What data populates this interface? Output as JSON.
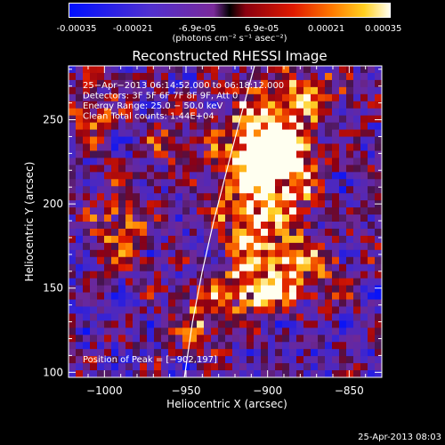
{
  "colorbar": {
    "ticks": [
      "-0.00035",
      "-0.00021",
      "-6.9e-05",
      "6.9e-05",
      "0.00021",
      "0.00035"
    ],
    "unit": "(photons cm⁻² s⁻¹ asec⁻²)"
  },
  "chart_data": {
    "type": "heatmap",
    "title": "Reconstructed RHESSI Image",
    "xlabel": "Heliocentric X (arcsec)",
    "ylabel": "Heliocentric Y (arcsec)",
    "xlim": [
      -1022,
      -830
    ],
    "ylim": [
      97,
      282
    ],
    "xticks": [
      -1000,
      -950,
      -900,
      -850
    ],
    "yticks": [
      100,
      150,
      200,
      250
    ],
    "xtick_labels": [
      "−1000",
      "−950",
      "−900",
      "−850"
    ],
    "ytick_labels": [
      "100",
      "150",
      "200",
      "250"
    ],
    "colorscale_range": [
      -0.00035,
      0.00035
    ],
    "annotations": [
      "25−Apr−2013 06:14:52.000 to 06:18:12.000",
      "Detectors: 3F 5F 6F 7F 8F 9F, Att 0",
      "Energy Range: 25.0 − 50.0 keV",
      "Clean     Total counts: 1.44E+04"
    ],
    "peak_label": "Position of Peak = [−902,197]",
    "peak": [
      -902,
      197
    ],
    "limb": [
      [
        -951,
        97
      ],
      [
        -946,
        130
      ],
      [
        -940,
        160
      ],
      [
        -933,
        190
      ],
      [
        -925,
        220
      ],
      [
        -917,
        250
      ],
      [
        -908,
        282
      ]
    ],
    "hot_regions": [
      {
        "x": -902,
        "y": 215,
        "sx": 18,
        "sy": 38,
        "amp": 1.0
      },
      {
        "x": -897,
        "y": 232,
        "sx": 14,
        "sy": 12,
        "amp": 0.7
      },
      {
        "x": -915,
        "y": 148,
        "sx": 22,
        "sy": 8,
        "amp": 0.55
      },
      {
        "x": -880,
        "y": 160,
        "sx": 20,
        "sy": 10,
        "amp": 0.5
      },
      {
        "x": -940,
        "y": 128,
        "sx": 12,
        "sy": 10,
        "amp": 0.5
      },
      {
        "x": -990,
        "y": 185,
        "sx": 12,
        "sy": 20,
        "amp": 0.45
      },
      {
        "x": -1010,
        "y": 255,
        "sx": 10,
        "sy": 12,
        "amp": 0.5
      },
      {
        "x": -870,
        "y": 265,
        "sx": 14,
        "sy": 10,
        "amp": 0.45
      },
      {
        "x": -960,
        "y": 235,
        "sx": 12,
        "sy": 10,
        "amp": 0.35
      }
    ]
  },
  "footer": {
    "timestamp": "25-Apr-2013 08:03"
  }
}
